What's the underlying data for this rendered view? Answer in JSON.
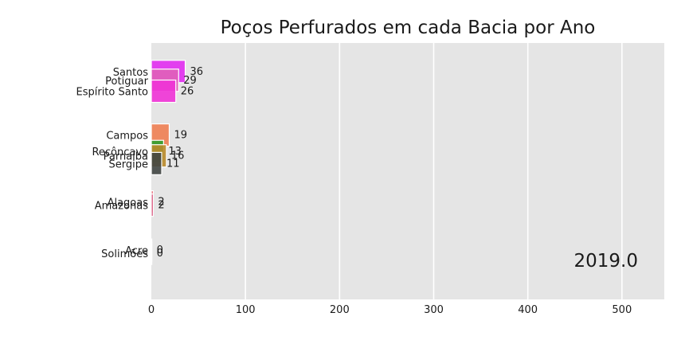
{
  "chart_data": {
    "type": "bar",
    "orientation": "horizontal",
    "title": "Poços Perfurados em cada Bacia por Ano",
    "year_label": "2019.0",
    "xlim": [
      0,
      545
    ],
    "x_ticks": [
      0,
      100,
      200,
      300,
      400,
      500
    ],
    "grid": true,
    "bars": [
      {
        "label": "Santos",
        "value": 36,
        "color": "#e12cf0",
        "rank": 10.9
      },
      {
        "label": "Potiguar",
        "value": 29,
        "color": "#e060b8",
        "rank": 10.5
      },
      {
        "label": "Espírito Santo",
        "value": 26,
        "color": "#f032d6",
        "rank": 10.0
      },
      {
        "label": "Campos",
        "value": 19,
        "color": "#ee7e52",
        "rank": 8.0
      },
      {
        "label": "Recôncavo",
        "value": 13,
        "color": "#2ea02e",
        "rank": 7.25
      },
      {
        "label": "Parnaíba",
        "value": 16,
        "color": "#b98a2a",
        "rank": 7.05
      },
      {
        "label": "Sergipe",
        "value": 11,
        "color": "#404542",
        "rank": 6.7
      },
      {
        "label": "Alagoas",
        "value": 2,
        "color": "#e24a5a",
        "rank": 4.95
      },
      {
        "label": "Amazonas",
        "value": 2,
        "color": "#d03a6a",
        "rank": 4.8
      },
      {
        "label": "Acre",
        "value": 0,
        "color": "#888888",
        "rank": 2.75
      },
      {
        "label": "Solimões",
        "value": 0,
        "color": "#888888",
        "rank": 2.6
      }
    ]
  }
}
